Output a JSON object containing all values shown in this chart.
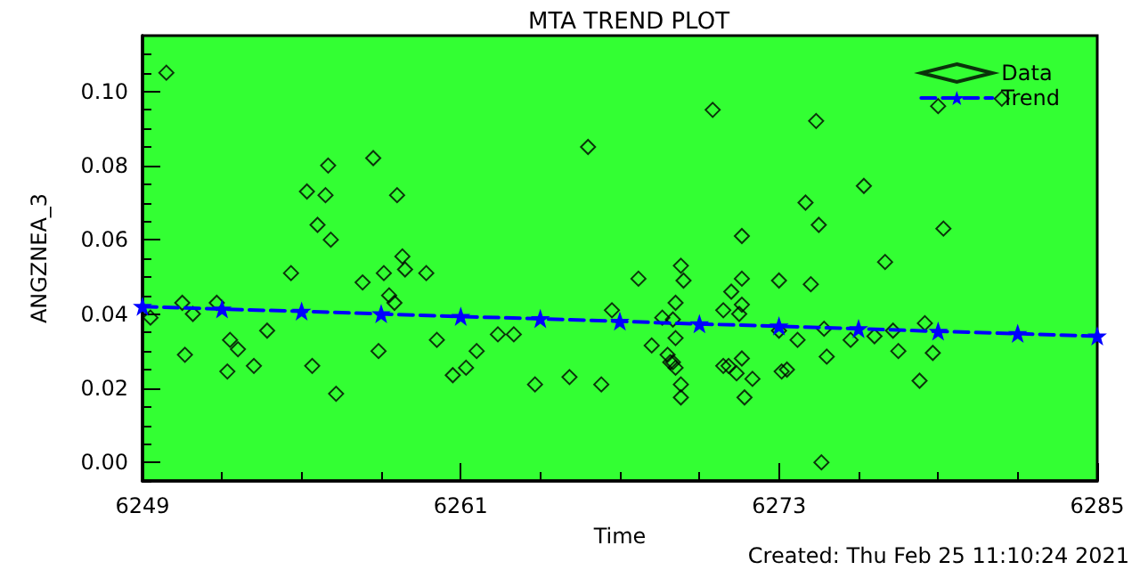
{
  "chart_data": {
    "type": "scatter",
    "title": "MTA TREND PLOT",
    "xlabel": "Time",
    "ylabel": "ANGZNEA_3",
    "annotations": [
      "Created: Thu Feb 25 11:10:24 2021"
    ],
    "xlim": [
      6249,
      6285
    ],
    "xticks": [
      6249,
      6261,
      6273,
      6285
    ],
    "ylim": [
      -0.005,
      0.115
    ],
    "yticks": [
      {
        "value": 0,
        "label": "0.00"
      },
      {
        "value": 0.02,
        "label": "0.02"
      },
      {
        "value": 0.04,
        "label": "0.04"
      },
      {
        "value": 0.06,
        "label": "0.06"
      },
      {
        "value": 0.08,
        "label": "0.08"
      },
      {
        "value": 0.1,
        "label": "0.10"
      }
    ],
    "grid": false,
    "legend": "top right",
    "series": [
      {
        "name": "Data",
        "marker": "diamond",
        "color": "#000000",
        "x": [
          6249.9,
          6249.3,
          6250.5,
          6250.6,
          6250.9,
          6251.8,
          6252.2,
          6252.3,
          6252.6,
          6253.2,
          6253.7,
          6254.6,
          6255.2,
          6255.4,
          6255.6,
          6255.9,
          6256.0,
          6256.1,
          6256.3,
          6257.3,
          6257.7,
          6257.9,
          6258.1,
          6258.3,
          6258.5,
          6258.6,
          6258.8,
          6258.9,
          6259.7,
          6260.1,
          6261.6,
          6260.7,
          6261.2,
          6262.4,
          6263.0,
          6263.8,
          6265.1,
          6265.8,
          6266.3,
          6266.7,
          6267.7,
          6268.2,
          6268.6,
          6268.8,
          6268.9,
          6269.0,
          6269.1,
          6269.3,
          6269.4,
          6269.1,
          6269.1,
          6269.3,
          6269.3,
          6269.0,
          6270.5,
          6270.9,
          6271.1,
          6270.9,
          6271.2,
          6271.6,
          6271.6,
          6271.6,
          6271.5,
          6271.6,
          6271.4,
          6272.0,
          6271.7,
          6273.0,
          6273.0,
          6273.1,
          6274.4,
          6274.0,
          6274.5,
          6274.2,
          6273.3,
          6273.7,
          6274.7,
          6274.8,
          6274.6,
          6275.7,
          6276.2,
          6276.6,
          6277.0,
          6277.3,
          6277.5,
          6278.3,
          6278.5,
          6278.8,
          6279.2,
          6279.0,
          6281.4
        ],
        "values": [
          0.105,
          0.039,
          0.043,
          0.029,
          0.04,
          0.043,
          0.0245,
          0.033,
          0.0305,
          0.026,
          0.0355,
          0.051,
          0.073,
          0.026,
          0.064,
          0.072,
          0.08,
          0.06,
          0.0185,
          0.0485,
          0.082,
          0.03,
          0.051,
          0.045,
          0.043,
          0.072,
          0.0555,
          0.052,
          0.051,
          0.033,
          0.03,
          0.0235,
          0.0255,
          0.0345,
          0.0345,
          0.021,
          0.023,
          0.085,
          0.021,
          0.041,
          0.0495,
          0.0315,
          0.039,
          0.029,
          0.027,
          0.0385,
          0.043,
          0.053,
          0.049,
          0.0335,
          0.0255,
          0.021,
          0.0175,
          0.027,
          0.095,
          0.026,
          0.026,
          0.041,
          0.046,
          0.061,
          0.0495,
          0.0425,
          0.04,
          0.028,
          0.024,
          0.0225,
          0.0175,
          0.049,
          0.0355,
          0.0245,
          0.092,
          0.07,
          0.064,
          0.048,
          0.025,
          0.033,
          0.036,
          0.0285,
          0.0,
          0.033,
          0.0745,
          0.034,
          0.054,
          0.0355,
          0.03,
          0.022,
          0.0375,
          0.0295,
          0.063,
          0.096,
          0.098
        ]
      },
      {
        "name": "Trend",
        "type": "line",
        "marker": "star",
        "line_style": "dashed",
        "color": "#0000ff",
        "x": [
          6249,
          6252,
          6255,
          6258,
          6261,
          6264,
          6267,
          6270,
          6273,
          6276,
          6279,
          6282,
          6285
        ],
        "values": [
          0.042,
          0.0413,
          0.0407,
          0.04,
          0.0393,
          0.0387,
          0.038,
          0.0373,
          0.0367,
          0.036,
          0.0353,
          0.0347,
          0.034
        ]
      }
    ]
  }
}
